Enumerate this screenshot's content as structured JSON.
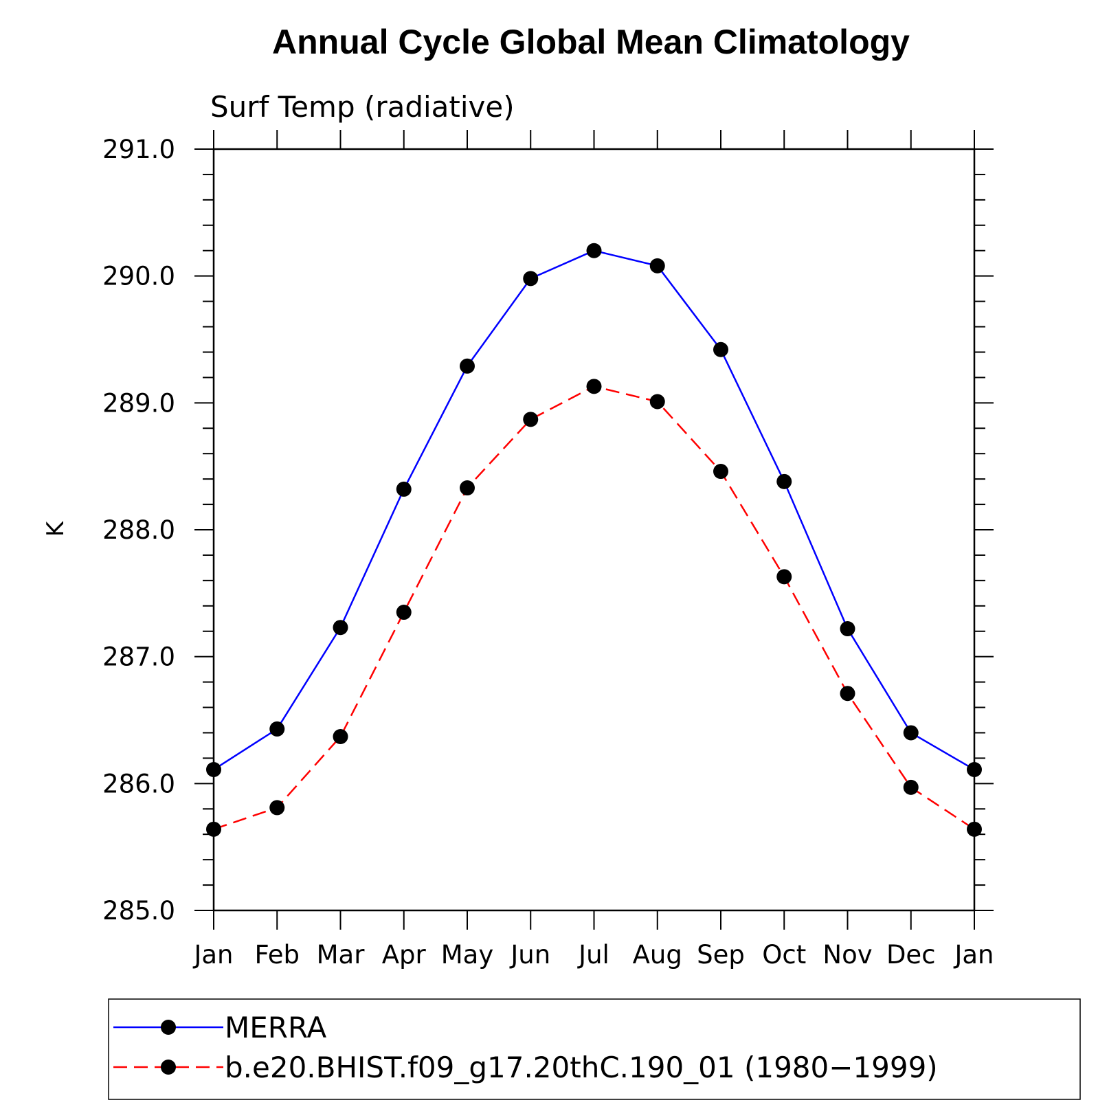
{
  "chart_data": {
    "type": "line",
    "title": "Annual Cycle Global Mean Climatology",
    "subtitle": "Surf Temp (radiative)",
    "xlabel": "",
    "ylabel": "K",
    "categories": [
      "Jan",
      "Feb",
      "Mar",
      "Apr",
      "May",
      "Jun",
      "Jul",
      "Aug",
      "Sep",
      "Oct",
      "Nov",
      "Dec",
      "Jan"
    ],
    "ylim": [
      285.0,
      291.0
    ],
    "yticks": [
      "285.0",
      "286.0",
      "287.0",
      "288.0",
      "289.0",
      "290.0",
      "291.0"
    ],
    "grid": false,
    "legend_position": "bottom",
    "series": [
      {
        "name": "MERRA",
        "color": "#0000ff",
        "dash": false,
        "marker": "filled-circle",
        "values": [
          286.11,
          286.43,
          287.23,
          288.32,
          289.29,
          289.98,
          290.2,
          290.08,
          289.42,
          288.38,
          287.22,
          286.4,
          286.11
        ]
      },
      {
        "name": "b.e20.BHIST.f09_g17.20thC.190_01 (1980−1999)",
        "color": "#ff0000",
        "dash": true,
        "marker": "filled-circle",
        "values": [
          285.64,
          285.81,
          286.37,
          287.35,
          288.33,
          288.87,
          289.13,
          289.01,
          288.46,
          287.63,
          286.71,
          285.97,
          285.64
        ]
      }
    ]
  }
}
